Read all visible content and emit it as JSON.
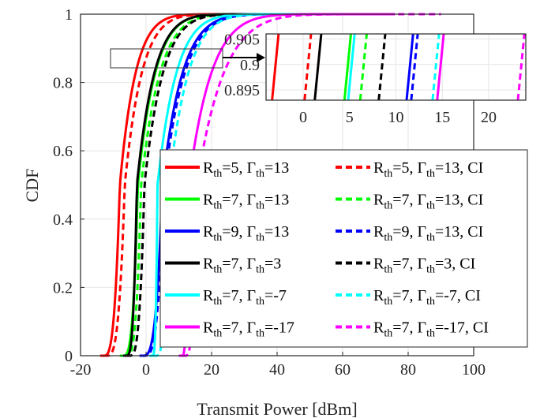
{
  "chart_data": {
    "type": "line",
    "xlabel": "Transmit Power [dBm]",
    "ylabel": "CDF",
    "xlim": [
      -20,
      100
    ],
    "ylim": [
      0,
      1
    ],
    "xticks": [
      "-20",
      "0",
      "20",
      "40",
      "60",
      "80",
      "100"
    ],
    "yticks": [
      "0",
      "0.2",
      "0.4",
      "0.6",
      "0.8",
      "1"
    ],
    "grid": true,
    "legend_placement": "bottom-right",
    "series": [
      {
        "label": "R_th=5, Γ_th=13",
        "color": "#ff0000",
        "dash": false,
        "median": -8.0,
        "min": -13,
        "max": 35
      },
      {
        "label": "R_th=5, Γ_th=13, CI",
        "color": "#ff0000",
        "dash": true,
        "median": -6.5,
        "min": -12,
        "max": 40
      },
      {
        "label": "R_th=7, Γ_th=13",
        "color": "#00ff00",
        "dash": false,
        "median": -2.5,
        "min": -7,
        "max": 45
      },
      {
        "label": "R_th=7, Γ_th=13, CI",
        "color": "#00ff00",
        "dash": true,
        "median": -1.5,
        "min": -6,
        "max": 50
      },
      {
        "label": "R_th=9, Γ_th=13",
        "color": "#0000ff",
        "dash": false,
        "median": 5.0,
        "min": -1,
        "max": 60
      },
      {
        "label": "R_th=9, Γ_th=13, CI",
        "color": "#0000ff",
        "dash": true,
        "median": 5.5,
        "min": -0.5,
        "max": 62
      },
      {
        "label": "R_th=7, Γ_th=3",
        "color": "#000000",
        "dash": false,
        "median": -2.8,
        "min": -6,
        "max": 45
      },
      {
        "label": "R_th=7, Γ_th=3, CI",
        "color": "#000000",
        "dash": true,
        "median": -0.5,
        "min": -5,
        "max": 50
      },
      {
        "label": "R_th=7, Γ_th=-7",
        "color": "#00ffff",
        "dash": false,
        "median": 3.5,
        "min": 2,
        "max": 55
      },
      {
        "label": "R_th=7, Γ_th=-7, CI",
        "color": "#00ffff",
        "dash": true,
        "median": 7.0,
        "min": 3,
        "max": 60
      },
      {
        "label": "R_th=7, Γ_th=-17",
        "color": "#ff00ff",
        "dash": false,
        "median": 13.0,
        "min": 11,
        "max": 75
      },
      {
        "label": "R_th=7, Γ_th=-17, CI",
        "color": "#ff00ff",
        "dash": true,
        "median": 15.5,
        "min": 12,
        "max": 89
      }
    ],
    "inset": {
      "xlim": [
        -4,
        24
      ],
      "ylim": [
        0.893,
        0.906
      ],
      "xticks": [
        "0",
        "5",
        "10",
        "15",
        "20"
      ],
      "yticks": [
        "0.905",
        "0.9",
        "0.895"
      ],
      "x_at_0p9": [
        -3.0,
        0.5,
        1.6,
        4.8,
        5.2,
        6.5,
        8.5,
        11.5,
        12.0,
        14.3,
        14.8,
        23.5
      ],
      "series_order": [
        0,
        1,
        6,
        2,
        8,
        3,
        7,
        4,
        5,
        9,
        10,
        11
      ]
    }
  }
}
